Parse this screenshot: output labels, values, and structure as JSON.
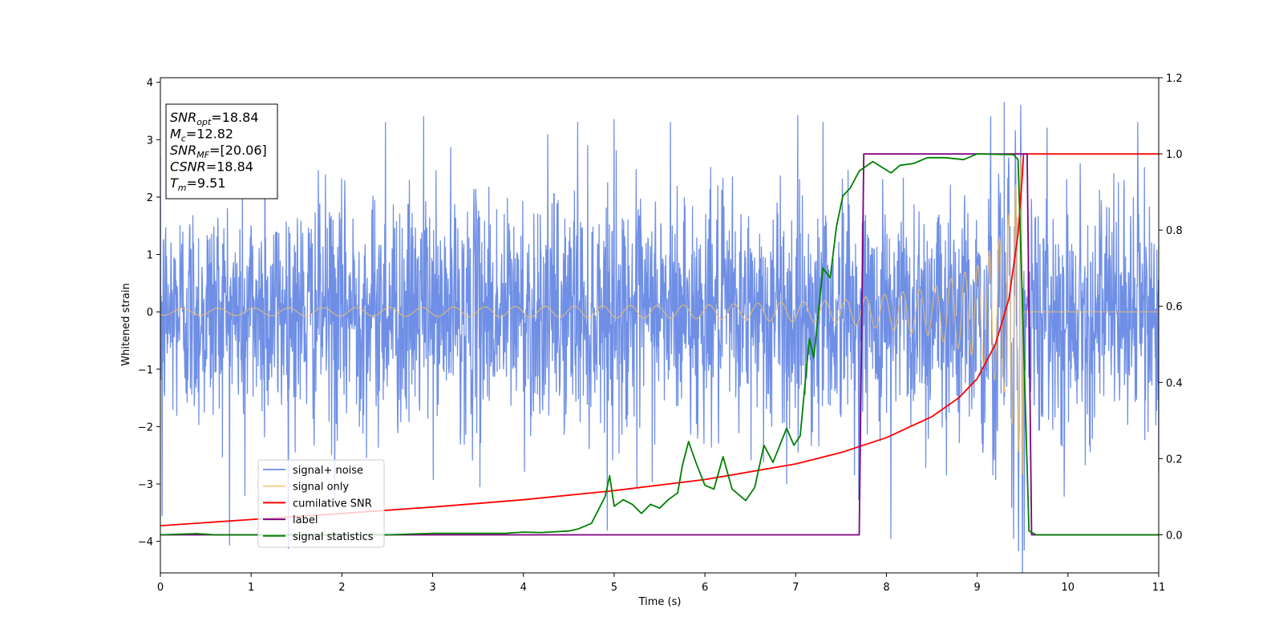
{
  "chart_data": {
    "type": "line",
    "title": "",
    "xlabel": "Time (s)",
    "ylabel": "Whitened strain",
    "xlim": [
      0,
      11
    ],
    "ylim": [
      -4.55,
      4.08
    ],
    "y2lim": [
      -0.1,
      1.2
    ],
    "x_ticks": [
      0,
      1,
      2,
      3,
      4,
      5,
      6,
      7,
      8,
      9,
      10,
      11
    ],
    "x_tick_labels": [
      "0",
      "1",
      "2",
      "3",
      "4",
      "5",
      "6",
      "7",
      "8",
      "9",
      "10",
      "11"
    ],
    "y_ticks": [
      -4,
      -3,
      -2,
      -1,
      0,
      1,
      2,
      3,
      4
    ],
    "y_tick_labels": [
      "−4",
      "−3",
      "−2",
      "−1",
      "0",
      "1",
      "2",
      "3",
      "4"
    ],
    "y2_ticks": [
      0.0,
      0.2,
      0.4,
      0.6,
      0.8,
      1.0,
      1.2
    ],
    "y2_tick_labels": [
      "0.0",
      "0.2",
      "0.4",
      "0.6",
      "0.8",
      "1.0",
      "1.2"
    ],
    "grid": false,
    "legend_placement": "lower-left",
    "series": [
      {
        "name": "signal+ noise",
        "axis": "left",
        "color": "#6f8fe6",
        "kind": "noise",
        "amplitude_typical": 1.0,
        "peaks": [
          {
            "x": 0.02,
            "y": -3.55
          },
          {
            "x": 0.93,
            "y": -3.2
          },
          {
            "x": 1.15,
            "y": 3.35
          },
          {
            "x": 1.92,
            "y": -3.25
          },
          {
            "x": 2.48,
            "y": 3.3
          },
          {
            "x": 2.9,
            "y": 3.4
          },
          {
            "x": 3.52,
            "y": -3.05
          },
          {
            "x": 4.6,
            "y": 3.3
          },
          {
            "x": 5.0,
            "y": 3.35
          },
          {
            "x": 5.25,
            "y": -3.05
          },
          {
            "x": 5.62,
            "y": 3.3
          },
          {
            "x": 6.9,
            "y": -3.0
          },
          {
            "x": 7.3,
            "y": 3.3
          },
          {
            "x": 8.05,
            "y": -3.95
          },
          {
            "x": 9.15,
            "y": 3.4
          },
          {
            "x": 9.3,
            "y": 3.65
          },
          {
            "x": 9.4,
            "y": -3.95
          },
          {
            "x": 9.48,
            "y": 3.6
          },
          {
            "x": 9.52,
            "y": -4.15
          },
          {
            "x": 10.77,
            "y": 3.3
          },
          {
            "x": 11.0,
            "y": -2.8
          }
        ]
      },
      {
        "name": "signal only",
        "axis": "left",
        "color": "#f5c061",
        "kind": "chirp",
        "t_merger": 9.51,
        "amplitude_at": [
          {
            "x": 0,
            "y": 0.06
          },
          {
            "x": 3,
            "y": 0.08
          },
          {
            "x": 6,
            "y": 0.12
          },
          {
            "x": 7.5,
            "y": 0.2
          },
          {
            "x": 8.5,
            "y": 0.42
          },
          {
            "x": 9.0,
            "y": 0.8
          },
          {
            "x": 9.3,
            "y": 1.4
          },
          {
            "x": 9.45,
            "y": 2.4
          },
          {
            "x": 9.51,
            "y": 3.0
          }
        ]
      },
      {
        "name": "cumilative SNR",
        "axis": "right",
        "color": "#ff0000",
        "points": [
          {
            "x": 0,
            "y": 0.024
          },
          {
            "x": 1,
            "y": 0.04
          },
          {
            "x": 2,
            "y": 0.056
          },
          {
            "x": 3,
            "y": 0.073
          },
          {
            "x": 4,
            "y": 0.092
          },
          {
            "x": 5,
            "y": 0.116
          },
          {
            "x": 6,
            "y": 0.145
          },
          {
            "x": 7,
            "y": 0.186
          },
          {
            "x": 7.5,
            "y": 0.216
          },
          {
            "x": 8,
            "y": 0.255
          },
          {
            "x": 8.5,
            "y": 0.31
          },
          {
            "x": 8.8,
            "y": 0.36
          },
          {
            "x": 9.0,
            "y": 0.41
          },
          {
            "x": 9.2,
            "y": 0.5
          },
          {
            "x": 9.35,
            "y": 0.62
          },
          {
            "x": 9.45,
            "y": 0.79
          },
          {
            "x": 9.5,
            "y": 0.95
          },
          {
            "x": 9.51,
            "y": 1.0
          },
          {
            "x": 11.0,
            "y": 1.0
          }
        ]
      },
      {
        "name": "label",
        "axis": "right",
        "color": "#800080",
        "points": [
          {
            "x": 0,
            "y": 0.0
          },
          {
            "x": 7.7,
            "y": 0.0
          },
          {
            "x": 7.75,
            "y": 1.0
          },
          {
            "x": 9.55,
            "y": 1.0
          },
          {
            "x": 9.6,
            "y": 0.0
          },
          {
            "x": 11.0,
            "y": 0.0
          }
        ]
      },
      {
        "name": "signal statistics",
        "axis": "right",
        "color": "#008000",
        "points": [
          {
            "x": 0.0,
            "y": 0.0
          },
          {
            "x": 0.4,
            "y": 0.003
          },
          {
            "x": 0.6,
            "y": 0.0
          },
          {
            "x": 2.5,
            "y": 0.0
          },
          {
            "x": 3.0,
            "y": 0.004
          },
          {
            "x": 3.8,
            "y": 0.004
          },
          {
            "x": 4.0,
            "y": 0.007
          },
          {
            "x": 4.2,
            "y": 0.006
          },
          {
            "x": 4.5,
            "y": 0.01
          },
          {
            "x": 4.6,
            "y": 0.015
          },
          {
            "x": 4.75,
            "y": 0.03
          },
          {
            "x": 4.9,
            "y": 0.1
          },
          {
            "x": 4.95,
            "y": 0.155
          },
          {
            "x": 5.0,
            "y": 0.075
          },
          {
            "x": 5.1,
            "y": 0.092
          },
          {
            "x": 5.2,
            "y": 0.08
          },
          {
            "x": 5.3,
            "y": 0.056
          },
          {
            "x": 5.4,
            "y": 0.08
          },
          {
            "x": 5.5,
            "y": 0.07
          },
          {
            "x": 5.6,
            "y": 0.093
          },
          {
            "x": 5.7,
            "y": 0.11
          },
          {
            "x": 5.75,
            "y": 0.18
          },
          {
            "x": 5.82,
            "y": 0.245
          },
          {
            "x": 5.9,
            "y": 0.19
          },
          {
            "x": 6.0,
            "y": 0.13
          },
          {
            "x": 6.1,
            "y": 0.12
          },
          {
            "x": 6.2,
            "y": 0.205
          },
          {
            "x": 6.3,
            "y": 0.12
          },
          {
            "x": 6.45,
            "y": 0.09
          },
          {
            "x": 6.55,
            "y": 0.125
          },
          {
            "x": 6.65,
            "y": 0.235
          },
          {
            "x": 6.75,
            "y": 0.19
          },
          {
            "x": 6.9,
            "y": 0.28
          },
          {
            "x": 6.98,
            "y": 0.235
          },
          {
            "x": 7.05,
            "y": 0.26
          },
          {
            "x": 7.15,
            "y": 0.515
          },
          {
            "x": 7.2,
            "y": 0.465
          },
          {
            "x": 7.3,
            "y": 0.7
          },
          {
            "x": 7.38,
            "y": 0.675
          },
          {
            "x": 7.45,
            "y": 0.81
          },
          {
            "x": 7.52,
            "y": 0.89
          },
          {
            "x": 7.6,
            "y": 0.91
          },
          {
            "x": 7.7,
            "y": 0.955
          },
          {
            "x": 7.85,
            "y": 0.98
          },
          {
            "x": 7.95,
            "y": 0.965
          },
          {
            "x": 8.05,
            "y": 0.95
          },
          {
            "x": 8.15,
            "y": 0.97
          },
          {
            "x": 8.3,
            "y": 0.975
          },
          {
            "x": 8.45,
            "y": 0.99
          },
          {
            "x": 8.65,
            "y": 0.99
          },
          {
            "x": 8.85,
            "y": 0.985
          },
          {
            "x": 9.0,
            "y": 1.0
          },
          {
            "x": 9.4,
            "y": 0.998
          },
          {
            "x": 9.45,
            "y": 0.985
          },
          {
            "x": 9.5,
            "y": 0.6
          },
          {
            "x": 9.57,
            "y": 0.01
          },
          {
            "x": 9.65,
            "y": 0.0
          },
          {
            "x": 11.0,
            "y": 0.0
          }
        ]
      }
    ],
    "info_box": [
      {
        "base": "SNR",
        "sub": "opt",
        "value": "=18.84"
      },
      {
        "base": "M",
        "sub": "c",
        "value": "=12.82"
      },
      {
        "base": "SNR",
        "sub": "MF",
        "value": "=[20.06]"
      },
      {
        "base": "CSNR",
        "sub": "",
        "value": "=18.84"
      },
      {
        "base": "T",
        "sub": "m",
        "value": "=9.51"
      }
    ]
  }
}
